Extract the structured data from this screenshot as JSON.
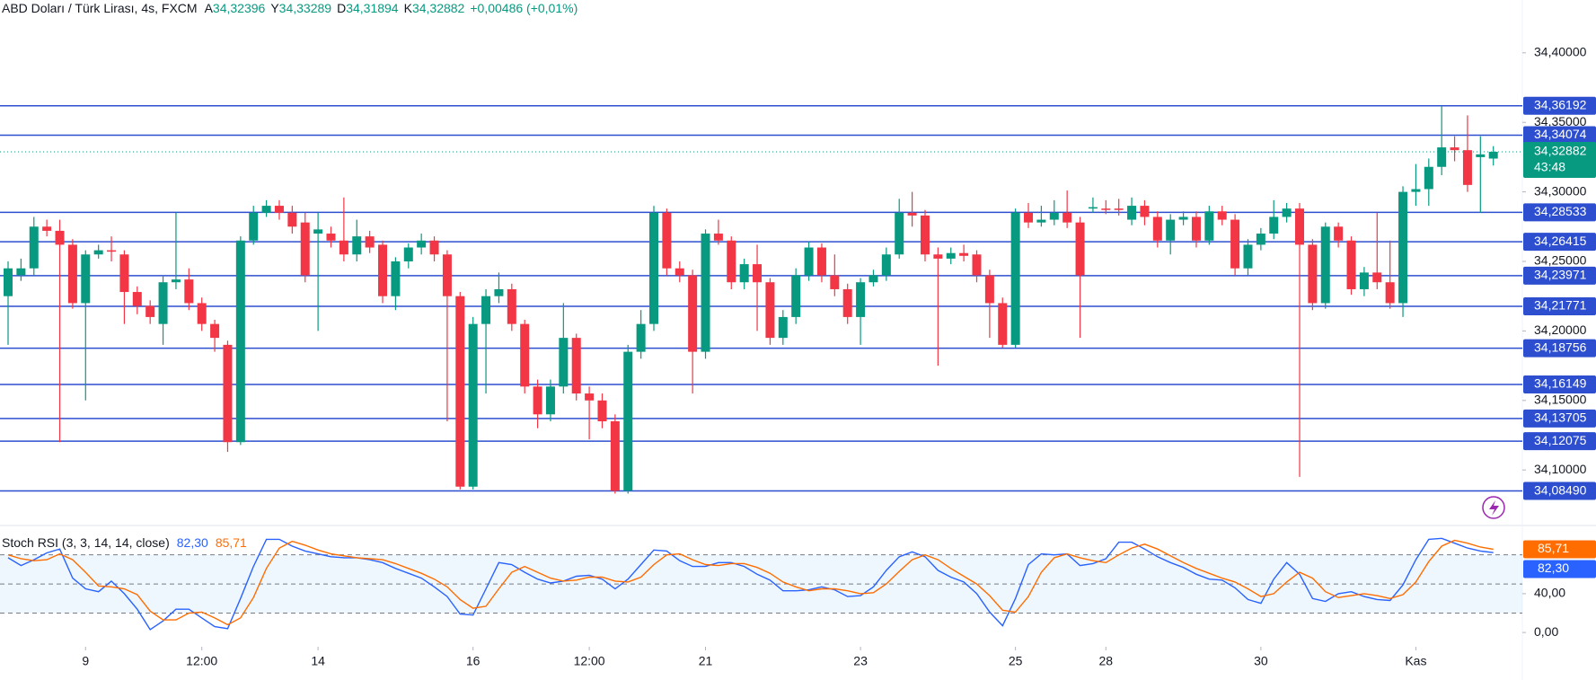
{
  "chart_data": [
    {
      "type": "candlestick",
      "title": "ABD Doları / Türk Lirası, 4s, FXCM",
      "ohlc_legend": [
        {
          "key": "A",
          "value": "34,32396"
        },
        {
          "key": "Y",
          "value": "34,33289"
        },
        {
          "key": "D",
          "value": "34,31894"
        },
        {
          "key": "K",
          "value": "34,32882"
        }
      ],
      "change": "+0,00486 (+0,01%)",
      "up_color": "#089981",
      "down_color": "#f23645",
      "open": [
        34.225,
        34.24,
        34.245,
        34.275,
        34.272,
        34.262,
        34.22,
        34.255,
        34.258,
        34.255,
        34.228,
        34.218,
        34.205,
        34.235,
        34.237,
        34.22,
        34.205,
        34.19,
        34.12,
        34.265,
        34.285,
        34.29,
        34.285,
        34.278,
        34.27,
        34.27,
        34.265,
        34.255,
        34.268,
        34.262,
        34.225,
        34.25,
        34.26,
        34.265,
        34.255,
        34.225,
        34.088,
        34.205,
        34.225,
        34.23,
        34.205,
        34.16,
        34.14,
        34.16,
        34.195,
        34.155,
        34.15,
        34.135,
        34.085,
        34.185,
        34.205,
        34.285,
        34.245,
        34.24,
        34.185,
        34.27,
        34.265,
        34.235,
        34.248,
        34.235,
        34.195,
        34.21,
        34.24,
        34.26,
        34.24,
        34.23,
        34.21,
        34.235,
        34.24,
        34.255,
        34.285,
        34.283,
        34.255,
        34.252,
        34.256,
        34.255,
        34.24,
        34.22,
        34.19,
        34.285,
        34.278,
        34.28,
        34.285,
        34.278,
        34.288,
        34.288,
        34.288,
        34.28,
        34.29,
        34.282,
        34.265,
        34.28,
        34.282,
        34.265,
        34.286,
        34.28,
        34.245,
        34.262,
        34.27,
        34.282,
        34.288,
        34.262,
        34.22,
        34.275,
        34.265,
        34.23,
        34.242,
        34.235,
        34.22,
        34.3,
        34.302,
        34.318,
        34.332,
        34.33,
        34.325,
        34.32396
      ],
      "high": [
        34.25,
        34.252,
        34.282,
        34.28,
        34.28,
        34.266,
        34.258,
        34.262,
        34.268,
        34.258,
        34.232,
        34.222,
        34.24,
        34.285,
        34.245,
        34.224,
        34.208,
        34.193,
        34.268,
        34.29,
        34.294,
        34.294,
        34.29,
        34.285,
        34.285,
        34.275,
        34.296,
        34.28,
        34.272,
        34.265,
        34.253,
        34.263,
        34.27,
        34.268,
        34.258,
        34.228,
        34.21,
        34.23,
        34.242,
        34.234,
        34.208,
        34.165,
        34.165,
        34.22,
        34.198,
        34.16,
        34.155,
        34.14,
        34.19,
        34.215,
        34.29,
        34.288,
        34.25,
        34.244,
        34.273,
        34.28,
        34.268,
        34.252,
        34.262,
        34.238,
        34.215,
        34.245,
        34.264,
        34.263,
        34.255,
        34.234,
        34.238,
        34.244,
        34.26,
        34.295,
        34.3,
        34.287,
        34.26,
        34.26,
        34.262,
        34.258,
        34.244,
        34.224,
        34.288,
        34.292,
        34.29,
        34.294,
        34.301,
        34.282,
        34.296,
        34.294,
        34.295,
        34.296,
        34.294,
        34.286,
        34.284,
        34.286,
        34.286,
        34.29,
        34.29,
        34.284,
        34.266,
        34.274,
        34.294,
        34.292,
        34.292,
        34.266,
        34.278,
        34.278,
        34.268,
        34.246,
        34.285,
        34.265,
        34.304,
        34.32,
        34.324,
        34.362,
        34.34,
        34.355,
        34.34,
        34.33289
      ],
      "low": [
        34.19,
        34.236,
        34.24,
        34.268,
        34.12,
        34.216,
        34.15,
        34.252,
        34.25,
        34.205,
        34.212,
        34.205,
        34.19,
        34.23,
        34.215,
        34.2,
        34.185,
        34.113,
        34.118,
        34.262,
        34.282,
        34.28,
        34.27,
        34.235,
        34.2,
        34.26,
        34.25,
        34.25,
        34.256,
        34.22,
        34.215,
        34.245,
        34.255,
        34.25,
        34.135,
        34.086,
        34.086,
        34.155,
        34.22,
        34.2,
        34.155,
        34.13,
        34.135,
        34.155,
        34.15,
        34.122,
        34.13,
        34.083,
        34.083,
        34.18,
        34.2,
        34.24,
        34.235,
        34.155,
        34.18,
        34.262,
        34.23,
        34.23,
        34.2,
        34.19,
        34.19,
        34.205,
        34.236,
        34.235,
        34.225,
        34.205,
        34.19,
        34.232,
        34.236,
        34.252,
        34.275,
        34.25,
        34.175,
        34.248,
        34.25,
        34.235,
        34.195,
        34.188,
        34.188,
        34.274,
        34.275,
        34.276,
        34.274,
        34.195,
        34.285,
        34.284,
        34.283,
        34.276,
        34.276,
        34.26,
        34.255,
        34.276,
        34.26,
        34.262,
        34.276,
        34.24,
        34.24,
        34.258,
        34.266,
        34.278,
        34.095,
        34.215,
        34.216,
        34.26,
        34.226,
        34.225,
        34.23,
        34.216,
        34.21,
        34.29,
        34.29,
        34.312,
        34.322,
        34.3,
        34.285,
        34.31894
      ],
      "close": [
        34.245,
        34.245,
        34.275,
        34.272,
        34.262,
        34.22,
        34.255,
        34.258,
        34.257,
        34.228,
        34.218,
        34.21,
        34.235,
        34.237,
        34.22,
        34.205,
        34.195,
        34.12,
        34.265,
        34.285,
        34.29,
        34.285,
        34.275,
        34.24,
        34.273,
        34.265,
        34.255,
        34.268,
        34.26,
        34.225,
        34.25,
        34.26,
        34.265,
        34.255,
        34.225,
        34.088,
        34.205,
        34.225,
        34.23,
        34.205,
        34.16,
        34.14,
        34.16,
        34.195,
        34.155,
        34.15,
        34.135,
        34.085,
        34.185,
        34.205,
        34.285,
        34.245,
        34.24,
        34.185,
        34.27,
        34.265,
        34.235,
        34.248,
        34.235,
        34.195,
        34.21,
        34.24,
        34.26,
        34.24,
        34.23,
        34.21,
        34.235,
        34.24,
        34.255,
        34.285,
        34.283,
        34.255,
        34.252,
        34.256,
        34.254,
        34.24,
        34.22,
        34.19,
        34.285,
        34.278,
        34.28,
        34.285,
        34.278,
        34.24,
        34.289,
        34.287,
        34.287,
        34.29,
        34.282,
        34.265,
        34.28,
        34.282,
        34.265,
        34.286,
        34.28,
        34.245,
        34.262,
        34.27,
        34.282,
        34.288,
        34.262,
        34.22,
        34.275,
        34.265,
        34.23,
        34.242,
        34.235,
        34.22,
        34.3,
        34.302,
        34.318,
        34.332,
        34.33,
        34.305,
        34.327,
        34.32882
      ],
      "ylim": [
        34.062,
        34.438
      ],
      "yticks": [
        {
          "value": 34.1,
          "label": "34,10000"
        },
        {
          "value": 34.15,
          "label": "34,15000"
        },
        {
          "value": 34.2,
          "label": "34,20000"
        },
        {
          "value": 34.25,
          "label": "34,25000"
        },
        {
          "value": 34.3,
          "label": "34,30000"
        },
        {
          "value": 34.35,
          "label": "34,35000"
        },
        {
          "value": 34.4,
          "label": "34,40000"
        }
      ],
      "xticks": [
        {
          "value": 6,
          "label": "9"
        },
        {
          "value": 15,
          "label": "12:00"
        },
        {
          "value": 24,
          "label": "14"
        },
        {
          "value": 36,
          "label": "16"
        },
        {
          "value": 45,
          "label": "12:00"
        },
        {
          "value": 54,
          "label": "21"
        },
        {
          "value": 66,
          "label": "23"
        },
        {
          "value": 78,
          "label": "25"
        },
        {
          "value": 85,
          "label": "28"
        },
        {
          "value": 97,
          "label": "30"
        },
        {
          "value": 109,
          "label": "Kas"
        }
      ],
      "level_color": "#2d4fcf",
      "levels": [
        {
          "value": 34.36192,
          "label": "34,36192"
        },
        {
          "value": 34.34074,
          "label": "34,34074"
        },
        {
          "value": 34.28533,
          "label": "34,28533"
        },
        {
          "value": 34.26415,
          "label": "34,26415"
        },
        {
          "value": 34.23971,
          "label": "34,23971"
        },
        {
          "value": 34.21771,
          "label": "34,21771"
        },
        {
          "value": 34.18756,
          "label": "34,18756"
        },
        {
          "value": 34.16149,
          "label": "34,16149"
        },
        {
          "value": 34.13705,
          "label": "34,13705"
        },
        {
          "value": 34.12075,
          "label": "34,12075"
        },
        {
          "value": 34.0849,
          "label": "34,08490"
        }
      ],
      "last": {
        "value": 34.32882,
        "label": "34,32882",
        "timer": "43:48"
      }
    },
    {
      "type": "line",
      "title": "Stoch RSI (3, 3, 14, 14, close)",
      "ylim": [
        -14.7,
        108.4
      ],
      "yticks": [
        {
          "value": 0,
          "label": "0,00"
        },
        {
          "value": 40,
          "label": "40,00"
        }
      ],
      "hlines": [
        20,
        50,
        80
      ],
      "series": [
        {
          "color": "#2962ff",
          "last_label": "82,30",
          "values": [
            77,
            69,
            75,
            82,
            86,
            56,
            45,
            42,
            53,
            40,
            24,
            3,
            12,
            24,
            24,
            15,
            6,
            4,
            35,
            68,
            96,
            96,
            89,
            84,
            81,
            78,
            77,
            77,
            75,
            72,
            66,
            61,
            56,
            47,
            37,
            19,
            18,
            45,
            72,
            70,
            62,
            55,
            51,
            53,
            58,
            59,
            55,
            45,
            55,
            70,
            85,
            84,
            74,
            68,
            68,
            72,
            72,
            68,
            60,
            54,
            43,
            43,
            44,
            47,
            44,
            37,
            38,
            47,
            64,
            78,
            83,
            78,
            64,
            57,
            52,
            40,
            21,
            7,
            35,
            70,
            81,
            80,
            81,
            69,
            71,
            76,
            93,
            93,
            86,
            78,
            72,
            67,
            60,
            55,
            54,
            46,
            34,
            30,
            55,
            72,
            60,
            35,
            32,
            40,
            42,
            37,
            34,
            33,
            49,
            75,
            96,
            97,
            92,
            87,
            84,
            82.3
          ]
        },
        {
          "color": "#ff6d00",
          "last_label": "85,71",
          "values": [
            80,
            76,
            74,
            75,
            81,
            75,
            62,
            48,
            47,
            45,
            39,
            22,
            13,
            13,
            20,
            21,
            15,
            8,
            15,
            36,
            66,
            87,
            94,
            90,
            85,
            81,
            79,
            77,
            76,
            75,
            71,
            66,
            61,
            55,
            47,
            34,
            25,
            27,
            45,
            62,
            68,
            62,
            56,
            53,
            54,
            57,
            57,
            53,
            52,
            57,
            70,
            80,
            81,
            75,
            70,
            69,
            71,
            71,
            67,
            61,
            52,
            47,
            43,
            45,
            45,
            43,
            40,
            41,
            50,
            63,
            75,
            80,
            75,
            66,
            58,
            50,
            38,
            23,
            21,
            37,
            62,
            77,
            81,
            77,
            74,
            72,
            80,
            87,
            91,
            86,
            79,
            72,
            66,
            61,
            56,
            52,
            45,
            37,
            40,
            52,
            62,
            56,
            42,
            36,
            38,
            40,
            38,
            35,
            39,
            52,
            73,
            89,
            95,
            92,
            88,
            85.71
          ]
        }
      ]
    }
  ]
}
